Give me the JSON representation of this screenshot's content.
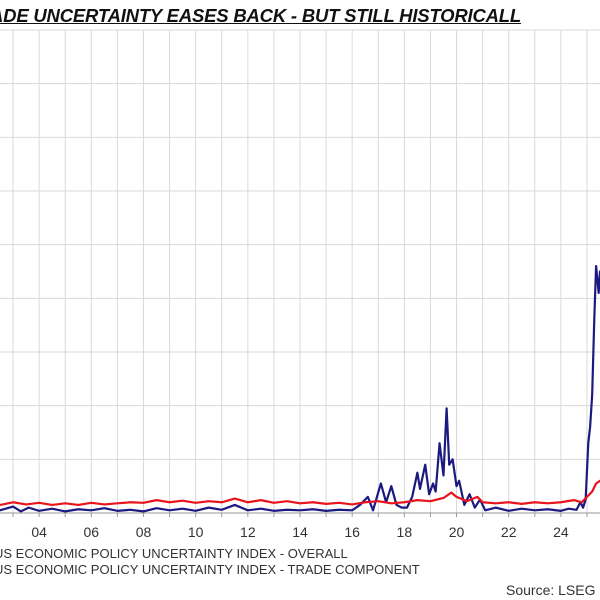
{
  "title": "ADE UNCERTAINTY EASES BACK - BUT STILL HISTORICALL",
  "source": "Source: LSEG",
  "legend": [
    {
      "label": "US ECONOMIC POLICY UNCERTAINTY INDEX - OVERALL",
      "color": "#1a1a80"
    },
    {
      "label": "US ECONOMIC POLICY UNCERTAINTY INDEX - TRADE COMPONENT",
      "color": "#e8141c"
    }
  ],
  "colors": {
    "overall": "#1a1a80",
    "trade": "#e8141c",
    "grid": "#d9d9d9",
    "axis": "#999999"
  },
  "chart_data": {
    "type": "line",
    "title": "ADE UNCERTAINTY EASES BACK - BUT STILL HISTORICALL",
    "xlabel": "",
    "ylabel": "",
    "xlim": [
      2002.5,
      2025.5
    ],
    "ylim": [
      0,
      9
    ],
    "grid": true,
    "legend_position": "bottom",
    "x_tick_labels": [
      "04",
      "06",
      "08",
      "10",
      "12",
      "14",
      "16",
      "18",
      "20",
      "22",
      "24"
    ],
    "x_tick_values": [
      2004,
      2006,
      2008,
      2010,
      2012,
      2014,
      2016,
      2018,
      2020,
      2022,
      2024
    ],
    "series": [
      {
        "name": "US ECONOMIC POLICY UNCERTAINTY INDEX - OVERALL",
        "color": "#1a1a80",
        "points": [
          [
            2002.5,
            0.05
          ],
          [
            2003.0,
            0.12
          ],
          [
            2003.3,
            0.03
          ],
          [
            2003.6,
            0.1
          ],
          [
            2004.0,
            0.04
          ],
          [
            2004.5,
            0.08
          ],
          [
            2005.0,
            0.03
          ],
          [
            2005.5,
            0.07
          ],
          [
            2006.0,
            0.05
          ],
          [
            2006.5,
            0.09
          ],
          [
            2007.0,
            0.04
          ],
          [
            2007.5,
            0.06
          ],
          [
            2008.0,
            0.03
          ],
          [
            2008.5,
            0.09
          ],
          [
            2009.0,
            0.05
          ],
          [
            2009.5,
            0.08
          ],
          [
            2010.0,
            0.04
          ],
          [
            2010.5,
            0.1
          ],
          [
            2011.0,
            0.06
          ],
          [
            2011.5,
            0.15
          ],
          [
            2012.0,
            0.05
          ],
          [
            2012.5,
            0.08
          ],
          [
            2013.0,
            0.04
          ],
          [
            2013.5,
            0.06
          ],
          [
            2014.0,
            0.05
          ],
          [
            2014.5,
            0.07
          ],
          [
            2015.0,
            0.04
          ],
          [
            2015.5,
            0.06
          ],
          [
            2016.0,
            0.05
          ],
          [
            2016.3,
            0.15
          ],
          [
            2016.6,
            0.3
          ],
          [
            2016.8,
            0.05
          ],
          [
            2017.1,
            0.55
          ],
          [
            2017.3,
            0.2
          ],
          [
            2017.5,
            0.5
          ],
          [
            2017.7,
            0.15
          ],
          [
            2017.9,
            0.1
          ],
          [
            2018.1,
            0.1
          ],
          [
            2018.3,
            0.3
          ],
          [
            2018.5,
            0.75
          ],
          [
            2018.6,
            0.45
          ],
          [
            2018.8,
            0.9
          ],
          [
            2018.95,
            0.35
          ],
          [
            2019.1,
            0.55
          ],
          [
            2019.2,
            0.4
          ],
          [
            2019.35,
            1.3
          ],
          [
            2019.5,
            0.7
          ],
          [
            2019.62,
            1.95
          ],
          [
            2019.72,
            0.9
          ],
          [
            2019.85,
            1.0
          ],
          [
            2020.0,
            0.5
          ],
          [
            2020.1,
            0.6
          ],
          [
            2020.3,
            0.15
          ],
          [
            2020.5,
            0.35
          ],
          [
            2020.7,
            0.1
          ],
          [
            2020.9,
            0.25
          ],
          [
            2021.1,
            0.05
          ],
          [
            2021.5,
            0.1
          ],
          [
            2022.0,
            0.04
          ],
          [
            2022.5,
            0.08
          ],
          [
            2023.0,
            0.05
          ],
          [
            2023.5,
            0.07
          ],
          [
            2024.0,
            0.04
          ],
          [
            2024.3,
            0.08
          ],
          [
            2024.6,
            0.06
          ],
          [
            2024.75,
            0.2
          ],
          [
            2024.85,
            0.1
          ],
          [
            2024.95,
            0.25
          ],
          [
            2025.05,
            1.3
          ],
          [
            2025.12,
            1.6
          ],
          [
            2025.2,
            2.2
          ],
          [
            2025.28,
            3.6
          ],
          [
            2025.35,
            4.6
          ],
          [
            2025.45,
            4.1
          ],
          [
            2025.5,
            4.5
          ]
        ]
      },
      {
        "name": "US ECONOMIC POLICY UNCERTAINTY INDEX - TRADE COMPONENT",
        "color": "#e8141c",
        "points": [
          [
            2002.5,
            0.15
          ],
          [
            2003.0,
            0.2
          ],
          [
            2003.5,
            0.16
          ],
          [
            2004.0,
            0.19
          ],
          [
            2004.5,
            0.15
          ],
          [
            2005.0,
            0.18
          ],
          [
            2005.5,
            0.15
          ],
          [
            2006.0,
            0.19
          ],
          [
            2006.5,
            0.16
          ],
          [
            2007.0,
            0.18
          ],
          [
            2007.5,
            0.2
          ],
          [
            2008.0,
            0.19
          ],
          [
            2008.5,
            0.24
          ],
          [
            2009.0,
            0.2
          ],
          [
            2009.5,
            0.23
          ],
          [
            2010.0,
            0.19
          ],
          [
            2010.5,
            0.22
          ],
          [
            2011.0,
            0.2
          ],
          [
            2011.5,
            0.27
          ],
          [
            2012.0,
            0.2
          ],
          [
            2012.5,
            0.24
          ],
          [
            2013.0,
            0.19
          ],
          [
            2013.5,
            0.22
          ],
          [
            2014.0,
            0.18
          ],
          [
            2014.5,
            0.2
          ],
          [
            2015.0,
            0.17
          ],
          [
            2015.5,
            0.19
          ],
          [
            2016.0,
            0.16
          ],
          [
            2016.5,
            0.2
          ],
          [
            2017.0,
            0.22
          ],
          [
            2017.5,
            0.18
          ],
          [
            2018.0,
            0.2
          ],
          [
            2018.5,
            0.24
          ],
          [
            2019.0,
            0.22
          ],
          [
            2019.5,
            0.28
          ],
          [
            2019.8,
            0.38
          ],
          [
            2020.0,
            0.3
          ],
          [
            2020.4,
            0.22
          ],
          [
            2020.8,
            0.3
          ],
          [
            2021.0,
            0.2
          ],
          [
            2021.5,
            0.18
          ],
          [
            2022.0,
            0.2
          ],
          [
            2022.5,
            0.17
          ],
          [
            2023.0,
            0.2
          ],
          [
            2023.5,
            0.18
          ],
          [
            2024.0,
            0.2
          ],
          [
            2024.5,
            0.24
          ],
          [
            2024.8,
            0.2
          ],
          [
            2025.0,
            0.3
          ],
          [
            2025.2,
            0.4
          ],
          [
            2025.35,
            0.55
          ],
          [
            2025.5,
            0.6
          ]
        ]
      }
    ]
  }
}
